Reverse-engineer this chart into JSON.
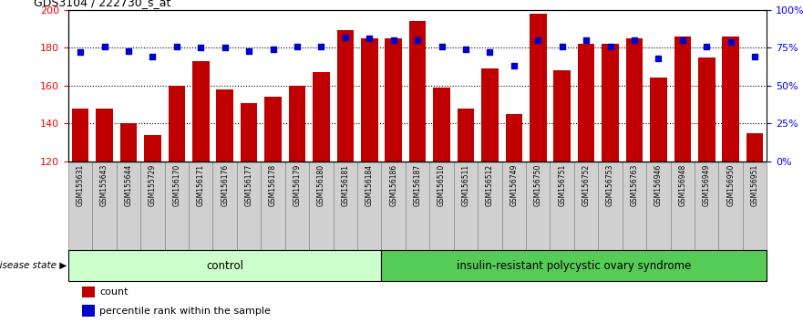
{
  "title": "GDS3104 / 222730_s_at",
  "samples": [
    "GSM155631",
    "GSM155643",
    "GSM155644",
    "GSM155729",
    "GSM156170",
    "GSM156171",
    "GSM156176",
    "GSM156177",
    "GSM156178",
    "GSM156179",
    "GSM156180",
    "GSM156181",
    "GSM156184",
    "GSM156186",
    "GSM156187",
    "GSM156510",
    "GSM156511",
    "GSM156512",
    "GSM156749",
    "GSM156750",
    "GSM156751",
    "GSM156752",
    "GSM156753",
    "GSM156763",
    "GSM156946",
    "GSM156948",
    "GSM156949",
    "GSM156950",
    "GSM156951"
  ],
  "bar_values": [
    148,
    148,
    140,
    134,
    160,
    173,
    158,
    151,
    154,
    160,
    167,
    189,
    185,
    185,
    194,
    159,
    148,
    169,
    145,
    198,
    168,
    182,
    182,
    185,
    164,
    186,
    175,
    186,
    135
  ],
  "percentile_values": [
    72,
    76,
    73,
    69,
    76,
    75,
    75,
    73,
    74,
    76,
    76,
    82,
    81,
    80,
    80,
    76,
    74,
    72,
    63,
    80,
    76,
    80,
    76,
    80,
    68,
    80,
    76,
    79,
    69
  ],
  "control_count": 13,
  "pcos_count": 16,
  "bar_color": "#c00000",
  "square_color": "#0000cc",
  "ylim_left": [
    120,
    200
  ],
  "ylim_right": [
    0,
    100
  ],
  "yticks_left": [
    120,
    140,
    160,
    180,
    200
  ],
  "yticks_right": [
    0,
    25,
    50,
    75,
    100
  ],
  "ytick_labels_right": [
    "0%",
    "25%",
    "50%",
    "75%",
    "100%"
  ],
  "control_label": "control",
  "pcos_label": "insulin-resistant polycystic ovary syndrome",
  "disease_state_label": "disease state",
  "legend_count": "count",
  "legend_percentile": "percentile rank within the sample",
  "control_bg": "#ccffcc",
  "pcos_bg": "#55cc55",
  "xtick_cell_bg": "#d0d0d0",
  "xtick_cell_border": "#888888"
}
